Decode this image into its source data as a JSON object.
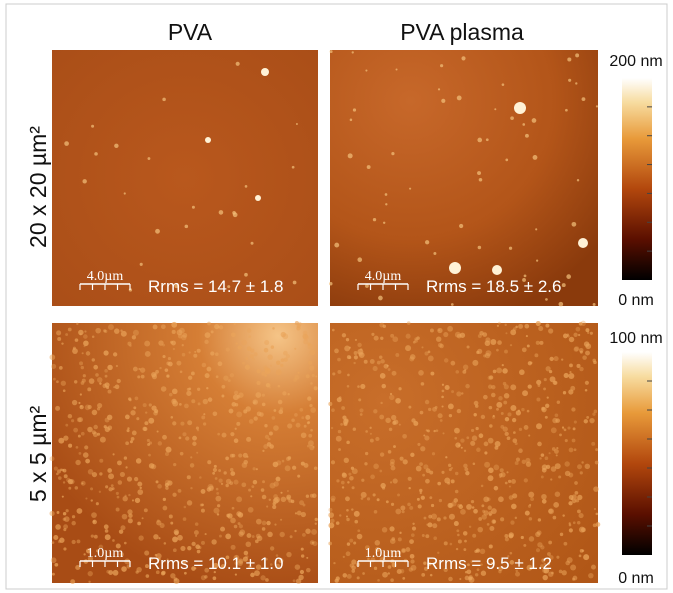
{
  "columns": [
    "PVA",
    "PVA plasma"
  ],
  "rows": [
    {
      "label": "20 x 20 µm²",
      "scale_bar": "4.0µm",
      "colorbar": {
        "max": "200 nm",
        "min": "0 nm"
      },
      "panels": [
        "Rrms = 14.7 ± 1.8",
        "Rrms = 18.5 ± 2.6"
      ]
    },
    {
      "label": "5 x 5 µm²",
      "scale_bar": "1.0µm",
      "colorbar": {
        "max": "100 nm",
        "min": "0 nm"
      },
      "panels": [
        "Rrms = 10.1 ± 1.0",
        "Rrms = 9.5 ± 1.2"
      ]
    }
  ]
}
